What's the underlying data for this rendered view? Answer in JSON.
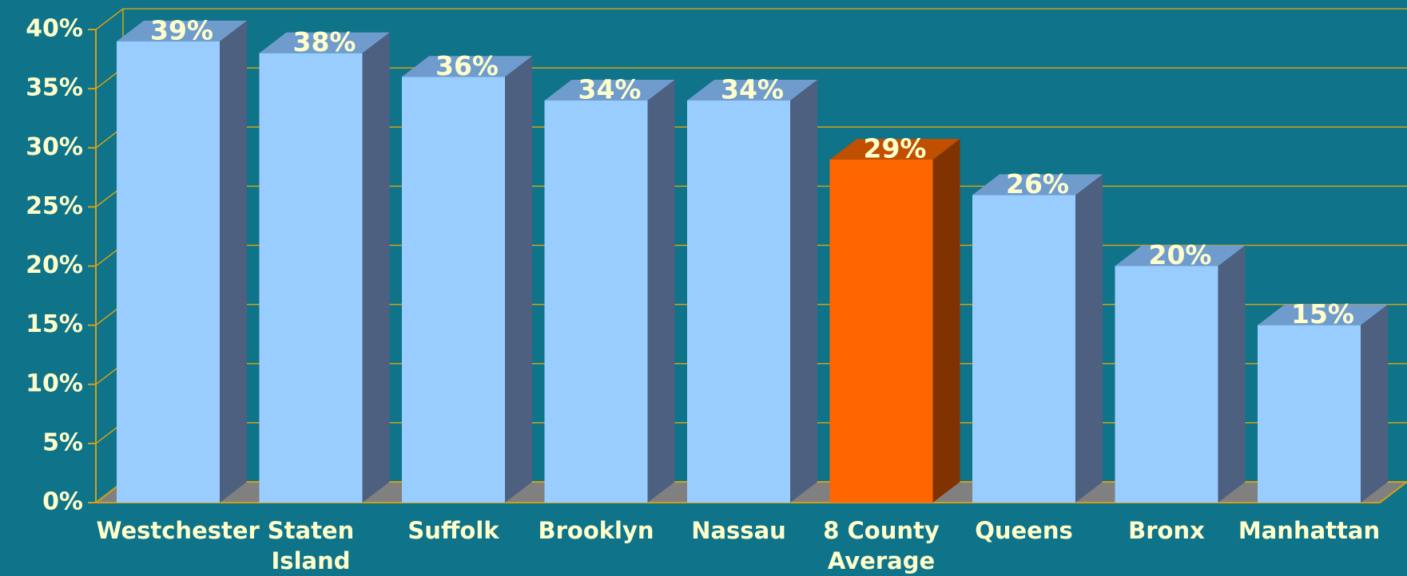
{
  "chart_data": {
    "type": "bar3d",
    "categories": [
      "Westchester",
      "Staten Island",
      "Suffolk",
      "Brooklyn",
      "Nassau",
      "8 County Average",
      "Queens",
      "Bronx",
      "Manhattan"
    ],
    "values": [
      39,
      38,
      36,
      34,
      34,
      29,
      26,
      20,
      15
    ],
    "value_labels": [
      "39%",
      "38%",
      "36%",
      "34%",
      "34%",
      "29%",
      "26%",
      "20%",
      "15%"
    ],
    "colors": [
      "#99ccff",
      "#99ccff",
      "#99ccff",
      "#99ccff",
      "#99ccff",
      "#ff6600",
      "#99ccff",
      "#99ccff",
      "#99ccff"
    ],
    "ylim": [
      0,
      40
    ],
    "yticks": [
      {
        "value": 0,
        "label": "0%"
      },
      {
        "value": 5,
        "label": "5%"
      },
      {
        "value": 10,
        "label": "10%"
      },
      {
        "value": 15,
        "label": "15%"
      },
      {
        "value": 20,
        "label": "20%"
      },
      {
        "value": 25,
        "label": "25%"
      },
      {
        "value": 30,
        "label": "30%"
      },
      {
        "value": 35,
        "label": "35%"
      },
      {
        "value": 40,
        "label": "40%"
      }
    ],
    "grid": true
  }
}
